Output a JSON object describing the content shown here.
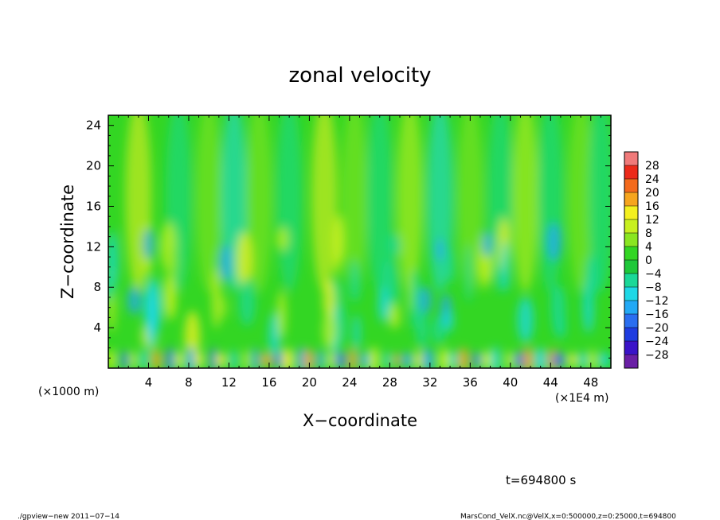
{
  "chart_data": {
    "type": "heatmap",
    "title": "zonal velocity",
    "xlabel": "X−coordinate",
    "ylabel": "Z−coordinate",
    "x_unit_left": "(×1000 m)",
    "x_unit_right": "(×1E4 m)",
    "xlim": [
      0,
      50
    ],
    "ylim": [
      0,
      25
    ],
    "xticks": [
      4,
      8,
      12,
      16,
      20,
      24,
      28,
      32,
      36,
      40,
      44,
      48
    ],
    "yticks": [
      4,
      8,
      12,
      16,
      20,
      24
    ],
    "colorbar": {
      "levels": [
        -32,
        -28,
        -24,
        -20,
        -16,
        -12,
        -8,
        -4,
        0,
        4,
        8,
        12,
        16,
        20,
        24,
        28,
        32
      ],
      "labels": [
        28,
        24,
        20,
        16,
        12,
        8,
        4,
        0,
        -4,
        -8,
        -12,
        -16,
        -20,
        -24,
        -28
      ],
      "colors": [
        "#6a1fa5",
        "#3a13c8",
        "#1e3ce0",
        "#2a6ef0",
        "#23a9f5",
        "#1ed8e6",
        "#1ad898",
        "#1ec83a",
        "#33d623",
        "#8ae621",
        "#c8f020",
        "#f4f01f",
        "#f6a51e",
        "#f46a1c",
        "#ec2a1a",
        "#f07a7a"
      ]
    },
    "field_description_values": {
      "near_surface_cells": "alternating -16 to +20 along x",
      "upper_columns": "alternating -8 to +12 along x"
    }
  },
  "annotations": {
    "time": "t=694800 s",
    "footer_left": "./gpview−new   2011−07−14",
    "footer_right": "MarsCond_VelX.nc@VelX,x=0:500000,z=0:25000,t=694800"
  }
}
